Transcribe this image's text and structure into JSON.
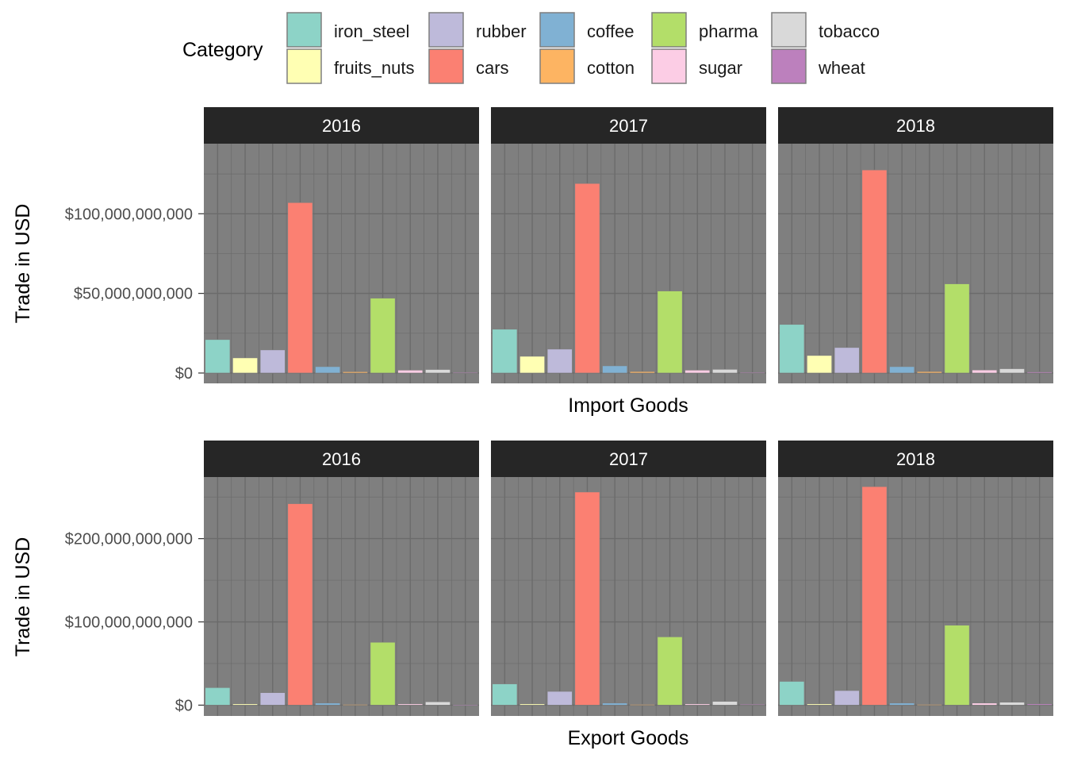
{
  "legend": {
    "title": "Category",
    "items": [
      {
        "key": "iron_steel",
        "label": "iron_steel",
        "color": "#8DD3C7"
      },
      {
        "key": "fruits_nuts",
        "label": "fruits_nuts",
        "color": "#FFFFB3"
      },
      {
        "key": "rubber",
        "label": "rubber",
        "color": "#BEBADA"
      },
      {
        "key": "cars",
        "label": "cars",
        "color": "#FB8072"
      },
      {
        "key": "coffee",
        "label": "coffee",
        "color": "#80B1D3"
      },
      {
        "key": "cotton",
        "label": "cotton",
        "color": "#FDB462"
      },
      {
        "key": "pharma",
        "label": "pharma",
        "color": "#B3DE69"
      },
      {
        "key": "sugar",
        "label": "sugar",
        "color": "#FCCDE5"
      },
      {
        "key": "tobacco",
        "label": "tobacco",
        "color": "#D9D9D9"
      },
      {
        "key": "wheat",
        "label": "wheat",
        "color": "#BC80BD"
      }
    ]
  },
  "colors": {
    "panel_bg": "#7F7F7F",
    "grid": "#6B6B6B",
    "strip_bg": "#262626",
    "bar_outline": "#7F7F7F"
  },
  "chart_data": [
    {
      "type": "bar",
      "name": "import",
      "xlabel": "Import Goods",
      "ylabel": "Trade in USD",
      "ylim": [
        -6500000000,
        144000000000
      ],
      "yticks": [
        0,
        50000000000,
        100000000000
      ],
      "ytick_labels": [
        "$0",
        "$50,000,000,000",
        "$100,000,000,000"
      ],
      "grid": true,
      "legend_position": "top",
      "categories": [
        "iron_steel",
        "fruits_nuts",
        "rubber",
        "cars",
        "coffee",
        "cotton",
        "pharma",
        "sugar",
        "tobacco",
        "wheat"
      ],
      "facets": [
        {
          "label": "2016",
          "values": [
            21000000000,
            9500000000,
            14500000000,
            107000000000,
            4000000000,
            800000000,
            47000000000,
            1800000000,
            2200000000,
            300000000
          ]
        },
        {
          "label": "2017",
          "values": [
            27500000000,
            10500000000,
            15000000000,
            119000000000,
            4500000000,
            900000000,
            51500000000,
            1800000000,
            2300000000,
            300000000
          ]
        },
        {
          "label": "2018",
          "values": [
            30500000000,
            11000000000,
            16000000000,
            127500000000,
            4000000000,
            900000000,
            56000000000,
            1900000000,
            2700000000,
            700000000
          ]
        }
      ]
    },
    {
      "type": "bar",
      "name": "export",
      "xlabel": "Export Goods",
      "ylabel": "Trade in USD",
      "ylim": [
        -13000000000,
        274000000000
      ],
      "yticks": [
        0,
        100000000000,
        200000000000
      ],
      "ytick_labels": [
        "$0",
        "$100,000,000,000",
        "$200,000,000,000"
      ],
      "grid": true,
      "legend_position": "top",
      "categories": [
        "iron_steel",
        "fruits_nuts",
        "rubber",
        "cars",
        "coffee",
        "cotton",
        "pharma",
        "sugar",
        "tobacco",
        "wheat"
      ],
      "facets": [
        {
          "label": "2016",
          "values": [
            21000000000,
            1500000000,
            15000000000,
            242000000000,
            2500000000,
            800000000,
            75500000000,
            1500000000,
            4000000000,
            600000000
          ]
        },
        {
          "label": "2017",
          "values": [
            25500000000,
            1500000000,
            16500000000,
            256000000000,
            2500000000,
            800000000,
            82000000000,
            1500000000,
            4500000000,
            1000000000
          ]
        },
        {
          "label": "2018",
          "values": [
            28500000000,
            1500000000,
            17500000000,
            262500000000,
            2500000000,
            800000000,
            96000000000,
            2500000000,
            3500000000,
            1500000000
          ]
        }
      ]
    }
  ]
}
